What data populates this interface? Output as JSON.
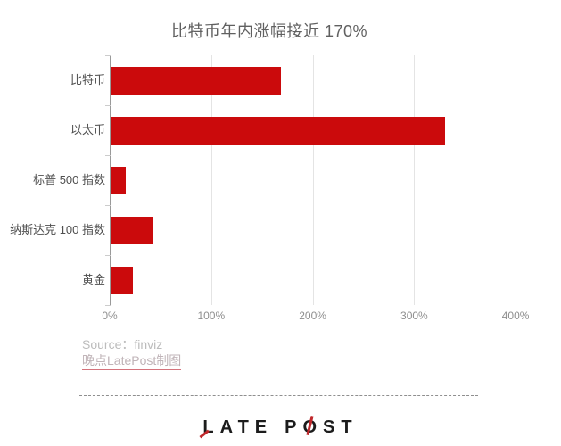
{
  "title": "比特币年内涨幅接近 170%",
  "chart_data": {
    "type": "bar",
    "orientation": "horizontal",
    "title": "比特币年内涨幅接近 170%",
    "categories": [
      "比特币",
      "以太币",
      "标普 500 指数",
      "纳斯达克 100 指数",
      "黄金"
    ],
    "values": [
      168,
      330,
      15,
      43,
      22
    ],
    "value_unit": "%",
    "xlabel": "",
    "ylabel": "",
    "xlim": [
      0,
      428
    ],
    "x_tick_values": [
      0,
      100,
      200,
      300,
      400
    ],
    "x_tick_labels": [
      "0%",
      "100%",
      "200%",
      "300%",
      "400%"
    ],
    "grid": true,
    "legend": false,
    "bar_color": "#cb0a0c"
  },
  "source": {
    "label": "Source：finviz",
    "credit_link": "晚点LatePost制图"
  },
  "logo": {
    "l": "L",
    "ate": "ATE",
    "p": "P",
    "o": "O",
    "st": "ST"
  },
  "colors": {
    "bar": "#cb0a0c",
    "title_text": "#606060",
    "category_label": "#4f4f4f",
    "tick_label": "#8e8e8e",
    "gridline": "#e4e4e4",
    "axis_line": "#999999",
    "source_text": "#bcbcbc",
    "credit_underline": "#d4737c",
    "logo_text": "#1c1c1c",
    "logo_accent": "#c0282c"
  }
}
